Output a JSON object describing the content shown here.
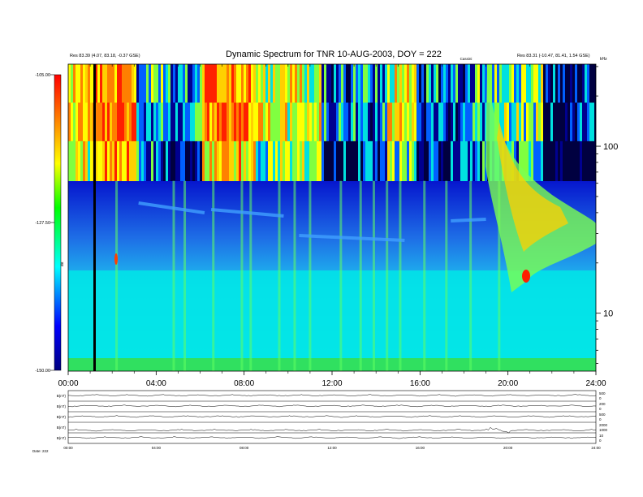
{
  "chart_data": [
    {
      "type": "heatmap",
      "title": "Dynamic Spectrum for TNR 10-AUG-2003, DOY = 222",
      "header_left": [
        "Res 83.39 (4.07, 83.18, -0.37 GSE)"
      ],
      "header_center_tag": "Cassini",
      "header_right": [
        "Res 83.31 (-10.47, 81.41, 1.54 GSE)"
      ],
      "ylabel_right": "kHz",
      "x_ticks": [
        "00:00",
        "04:00",
        "08:00",
        "12:00",
        "16:00",
        "20:00",
        "24:00"
      ],
      "x_range_hours": [
        0,
        24
      ],
      "y_scale": "log",
      "y_range_khz": [
        4.5,
        310
      ],
      "y_ticks_labeled": [
        "100",
        "10"
      ],
      "colorbar": {
        "label": "dB",
        "ticks": [
          "-105.00",
          "-127.50",
          "-150.00"
        ],
        "range": [
          -150,
          -105
        ],
        "colors": [
          "#00007f",
          "#0000ff",
          "#00ffff",
          "#00ff00",
          "#ffff00",
          "#ff8000",
          "#ff0000"
        ]
      },
      "band_split_khz": 62,
      "marker_line_hour": 1.2
    },
    {
      "type": "line",
      "panel": "magnetometer",
      "series": [
        {
          "name": "B(nT)",
          "scale_ticks": [
            "500",
            "0"
          ]
        },
        {
          "name": "B(nT)",
          "scale_ticks": [
            "200",
            "0"
          ]
        },
        {
          "name": "B(nT)",
          "scale_ticks": [
            "500",
            "0"
          ]
        },
        {
          "name": "B(nT)",
          "scale_ticks": [
            "2000",
            "1000"
          ]
        },
        {
          "name": "B(nT)",
          "scale_ticks": [
            "10",
            "0"
          ]
        }
      ],
      "x_ticks": [
        "00:00",
        "04:00",
        "08:00",
        "12:00",
        "16:00",
        "20:00",
        "24:00"
      ],
      "footer": "Date: 222"
    }
  ]
}
